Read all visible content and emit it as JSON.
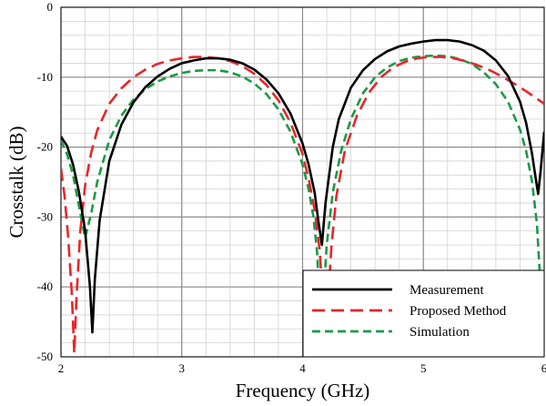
{
  "chart_data": {
    "type": "line",
    "xlabel": "Frequency (GHz)",
    "ylabel": "Crosstalk (dB)",
    "xlim": [
      2,
      6
    ],
    "ylim": [
      -50,
      0
    ],
    "x_major_ticks": [
      2,
      3,
      4,
      5,
      6
    ],
    "y_major_ticks": [
      0,
      -10,
      -20,
      -30,
      -40,
      -50
    ],
    "x_minor_step": 0.2,
    "y_minor_step": 2,
    "grid": true,
    "legend_position": "bottom-right",
    "series": [
      {
        "name": "Measurement",
        "color": "#000000",
        "dash": "solid",
        "points": [
          [
            2.0,
            -18.5
          ],
          [
            2.05,
            -19.8
          ],
          [
            2.1,
            -22.5
          ],
          [
            2.15,
            -26.5
          ],
          [
            2.2,
            -32.0
          ],
          [
            2.24,
            -40.0
          ],
          [
            2.26,
            -46.5
          ],
          [
            2.28,
            -39.0
          ],
          [
            2.32,
            -30.5
          ],
          [
            2.4,
            -22.0
          ],
          [
            2.5,
            -16.8
          ],
          [
            2.6,
            -13.6
          ],
          [
            2.7,
            -11.4
          ],
          [
            2.8,
            -9.9
          ],
          [
            2.9,
            -8.8
          ],
          [
            3.0,
            -8.0
          ],
          [
            3.1,
            -7.6
          ],
          [
            3.2,
            -7.3
          ],
          [
            3.3,
            -7.3
          ],
          [
            3.4,
            -7.5
          ],
          [
            3.5,
            -8.0
          ],
          [
            3.6,
            -8.9
          ],
          [
            3.7,
            -10.3
          ],
          [
            3.8,
            -12.3
          ],
          [
            3.9,
            -15.2
          ],
          [
            4.0,
            -19.5
          ],
          [
            4.05,
            -22.5
          ],
          [
            4.1,
            -26.5
          ],
          [
            4.13,
            -30.5
          ],
          [
            4.16,
            -34.0
          ],
          [
            4.19,
            -28.0
          ],
          [
            4.25,
            -20.0
          ],
          [
            4.3,
            -16.0
          ],
          [
            4.4,
            -11.5
          ],
          [
            4.5,
            -9.0
          ],
          [
            4.6,
            -7.4
          ],
          [
            4.7,
            -6.3
          ],
          [
            4.8,
            -5.6
          ],
          [
            4.9,
            -5.2
          ],
          [
            5.0,
            -4.9
          ],
          [
            5.1,
            -4.7
          ],
          [
            5.2,
            -4.7
          ],
          [
            5.3,
            -4.9
          ],
          [
            5.4,
            -5.4
          ],
          [
            5.5,
            -6.2
          ],
          [
            5.6,
            -7.6
          ],
          [
            5.7,
            -9.8
          ],
          [
            5.8,
            -13.5
          ],
          [
            5.85,
            -16.5
          ],
          [
            5.9,
            -21.0
          ],
          [
            5.93,
            -24.5
          ],
          [
            5.95,
            -26.7
          ],
          [
            5.97,
            -23.5
          ],
          [
            6.0,
            -17.8
          ]
        ]
      },
      {
        "name": "Proposed Method",
        "color": "#e8262a",
        "dash": "long-dash",
        "points": [
          [
            2.0,
            -23.0
          ],
          [
            2.03,
            -27.0
          ],
          [
            2.06,
            -33.0
          ],
          [
            2.09,
            -41.0
          ],
          [
            2.11,
            -49.5
          ],
          [
            2.13,
            -41.0
          ],
          [
            2.16,
            -32.0
          ],
          [
            2.2,
            -25.5
          ],
          [
            2.25,
            -20.8
          ],
          [
            2.3,
            -17.6
          ],
          [
            2.4,
            -13.8
          ],
          [
            2.5,
            -11.6
          ],
          [
            2.6,
            -10.0
          ],
          [
            2.7,
            -8.9
          ],
          [
            2.8,
            -8.1
          ],
          [
            2.9,
            -7.6
          ],
          [
            3.0,
            -7.3
          ],
          [
            3.1,
            -7.1
          ],
          [
            3.2,
            -7.1
          ],
          [
            3.3,
            -7.3
          ],
          [
            3.4,
            -7.7
          ],
          [
            3.5,
            -8.4
          ],
          [
            3.6,
            -9.5
          ],
          [
            3.7,
            -11.1
          ],
          [
            3.8,
            -13.3
          ],
          [
            3.9,
            -16.5
          ],
          [
            4.0,
            -21.0
          ],
          [
            4.05,
            -24.5
          ],
          [
            4.1,
            -29.0
          ],
          [
            4.14,
            -34.5
          ],
          [
            4.17,
            -42.0
          ],
          [
            4.19,
            -48.0
          ],
          [
            4.21,
            -42.0
          ],
          [
            4.24,
            -34.0
          ],
          [
            4.28,
            -27.0
          ],
          [
            4.35,
            -20.5
          ],
          [
            4.45,
            -15.5
          ],
          [
            4.55,
            -12.2
          ],
          [
            4.65,
            -10.0
          ],
          [
            4.75,
            -8.6
          ],
          [
            4.85,
            -7.8
          ],
          [
            4.95,
            -7.3
          ],
          [
            5.05,
            -7.1
          ],
          [
            5.15,
            -7.1
          ],
          [
            5.25,
            -7.3
          ],
          [
            5.35,
            -7.7
          ],
          [
            5.45,
            -8.3
          ],
          [
            5.55,
            -9.0
          ],
          [
            5.65,
            -9.9
          ],
          [
            5.75,
            -10.9
          ],
          [
            5.85,
            -12.0
          ],
          [
            5.95,
            -13.2
          ],
          [
            6.0,
            -13.8
          ]
        ]
      },
      {
        "name": "Simulation",
        "color": "#1a9a46",
        "dash": "dash",
        "points": [
          [
            2.0,
            -19.0
          ],
          [
            2.05,
            -21.0
          ],
          [
            2.1,
            -24.0
          ],
          [
            2.15,
            -28.5
          ],
          [
            2.2,
            -33.0
          ],
          [
            2.25,
            -29.5
          ],
          [
            2.3,
            -25.0
          ],
          [
            2.4,
            -19.0
          ],
          [
            2.5,
            -15.5
          ],
          [
            2.6,
            -13.2
          ],
          [
            2.7,
            -11.7
          ],
          [
            2.8,
            -10.6
          ],
          [
            2.9,
            -9.9
          ],
          [
            3.0,
            -9.4
          ],
          [
            3.1,
            -9.1
          ],
          [
            3.2,
            -9.0
          ],
          [
            3.3,
            -9.0
          ],
          [
            3.4,
            -9.3
          ],
          [
            3.5,
            -9.9
          ],
          [
            3.6,
            -10.9
          ],
          [
            3.7,
            -12.4
          ],
          [
            3.8,
            -14.6
          ],
          [
            3.9,
            -17.8
          ],
          [
            4.0,
            -22.5
          ],
          [
            4.05,
            -26.0
          ],
          [
            4.09,
            -30.0
          ],
          [
            4.12,
            -35.0
          ],
          [
            4.14,
            -42.0
          ],
          [
            4.15,
            -48.5
          ],
          [
            4.17,
            -42.0
          ],
          [
            4.2,
            -34.0
          ],
          [
            4.25,
            -26.5
          ],
          [
            4.32,
            -20.5
          ],
          [
            4.4,
            -16.0
          ],
          [
            4.5,
            -12.3
          ],
          [
            4.6,
            -10.0
          ],
          [
            4.7,
            -8.6
          ],
          [
            4.8,
            -7.7
          ],
          [
            4.9,
            -7.2
          ],
          [
            5.0,
            -7.0
          ],
          [
            5.1,
            -6.9
          ],
          [
            5.2,
            -7.0
          ],
          [
            5.3,
            -7.4
          ],
          [
            5.4,
            -8.1
          ],
          [
            5.5,
            -9.3
          ],
          [
            5.6,
            -11.0
          ],
          [
            5.7,
            -13.5
          ],
          [
            5.8,
            -17.5
          ],
          [
            5.85,
            -20.5
          ],
          [
            5.9,
            -25.0
          ],
          [
            5.94,
            -31.0
          ],
          [
            5.97,
            -40.0
          ],
          [
            5.99,
            -48.5
          ],
          [
            6.0,
            -50.0
          ]
        ]
      }
    ]
  }
}
